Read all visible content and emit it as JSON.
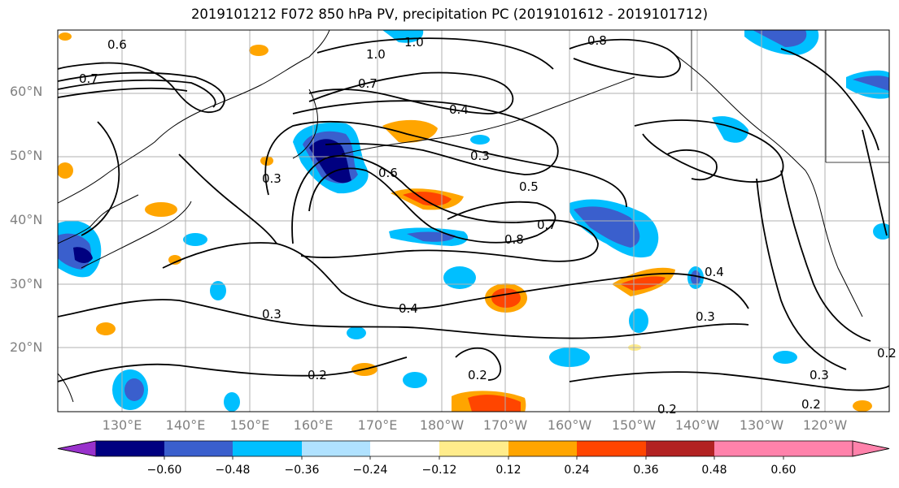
{
  "title": "2019101212 F072 850 hPa PV, precipitation PC (2019101612 - 2019101712)",
  "lat_labels": [
    "60°N",
    "50°N",
    "40°N",
    "30°N",
    "20°N"
  ],
  "lon_labels": [
    "130°E",
    "140°E",
    "150°E",
    "160°E",
    "170°E",
    "180°W",
    "170°W",
    "160°W",
    "150°W",
    "140°W",
    "130°W",
    "120°W"
  ],
  "colorbar": {
    "ticks": [
      "−0.60",
      "−0.48",
      "−0.36",
      "−0.24",
      "−0.12",
      "0.12",
      "0.24",
      "0.36",
      "0.48",
      "0.60"
    ],
    "colors": [
      "#9932cc",
      "#000080",
      "#3a5fcd",
      "#00bfff",
      "#b0e2ff",
      "#ffffff",
      "#ffec8b",
      "#ffa500",
      "#ff4500",
      "#b22222",
      "#ff82ab"
    ]
  },
  "contour_labels": [
    "0.6",
    "1.0",
    "1.0",
    "0.8",
    "0.7",
    "0.7",
    "0.4",
    "0.3",
    "0.6",
    "0.5",
    "0.3",
    "0.7",
    "0.8",
    "0.3",
    "0.4",
    "0.3",
    "0.2",
    "0.2",
    "0.2",
    "0.2",
    "0.3",
    "0.4",
    "0.2"
  ],
  "map": {
    "lat_range": [
      10,
      70
    ],
    "lon_range": [
      120,
      250
    ],
    "gridlines": true,
    "field_contours": "850 hPa PV",
    "field_shaded": "precipitation PC"
  }
}
